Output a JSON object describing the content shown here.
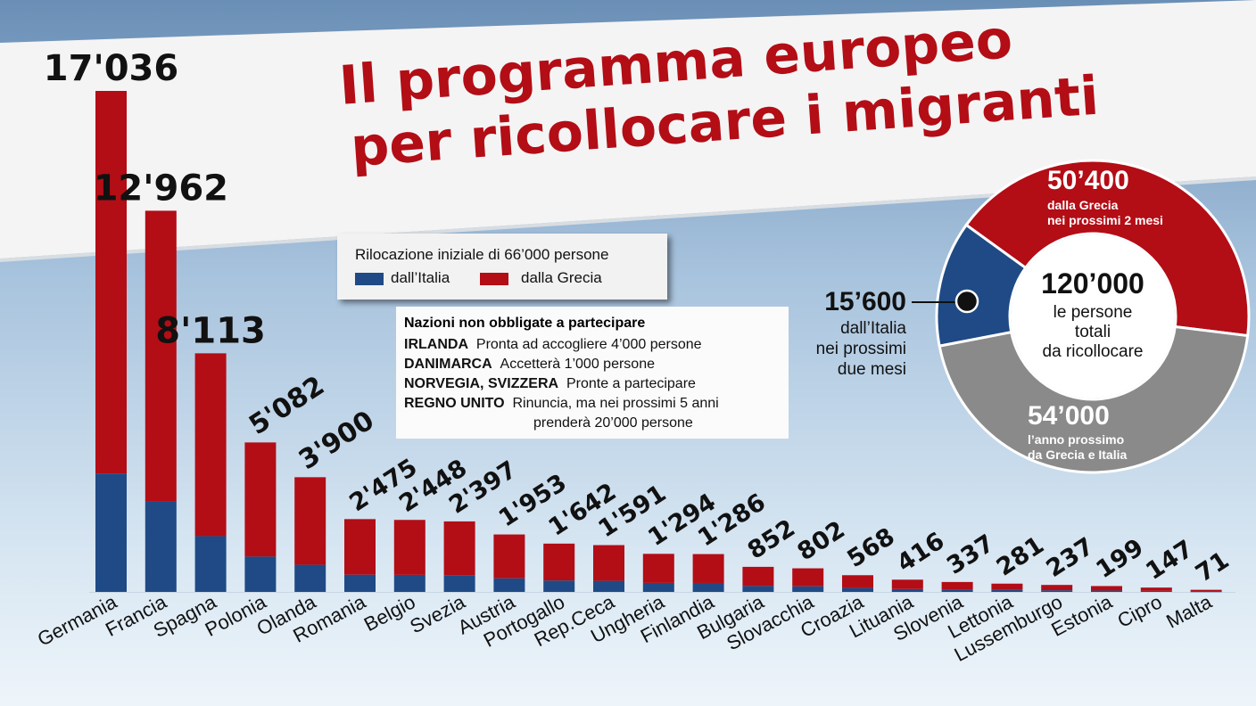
{
  "title": {
    "line1": "Il programma europeo",
    "line2": "per ricollocare i migranti"
  },
  "legend": {
    "title": "Rilocazione iniziale di 66’000 persone",
    "italy": "dall’Italia",
    "greece": "dalla Grecia"
  },
  "colors": {
    "italy": "#1f4a85",
    "greece": "#b30d16",
    "donut_gray": "#8a8a8a",
    "title": "#b30d16"
  },
  "info": {
    "heading": "Nazioni non obbligate a partecipare",
    "rows": [
      {
        "country": "IRLANDA",
        "text": "Pronta ad accogliere 4’000 persone"
      },
      {
        "country": "DANIMARCA",
        "text": "Accetterà 1’000 persone"
      },
      {
        "country": "NORVEGIA, SVIZZERA",
        "text": "Pronte a partecipare"
      },
      {
        "country": "REGNO UNITO",
        "text": "Rinuncia, ma nei prossimi 5 anni"
      }
    ],
    "extra": "prenderà 20’000 persone"
  },
  "chart_data": {
    "type": "bar",
    "stacked": true,
    "categories": [
      "Germania",
      "Francia",
      "Spagna",
      "Polonia",
      "Olanda",
      "Romania",
      "Belgio",
      "Svezia",
      "Austria",
      "Portogallo",
      "Rep.Ceca",
      "Ungheria",
      "Finlandia",
      "Bulgaria",
      "Slovacchia",
      "Croazia",
      "Lituania",
      "Slovenia",
      "Lettonia",
      "Lussemburgo",
      "Estonia",
      "Cipro",
      "Malta"
    ],
    "totals": [
      17036,
      12962,
      8113,
      5082,
      3900,
      2475,
      2448,
      2397,
      1953,
      1642,
      1591,
      1294,
      1286,
      852,
      802,
      568,
      416,
      337,
      281,
      237,
      199,
      147,
      71
    ],
    "total_labels": [
      "17'036",
      "12'962",
      "8'113",
      "5'082",
      "3'900",
      "2'475",
      "2'448",
      "2'397",
      "1'953",
      "1'642",
      "1'591",
      "1'294",
      "1'286",
      "852",
      "802",
      "568",
      "416",
      "337",
      "281",
      "237",
      "199",
      "147",
      "71"
    ],
    "series": [
      {
        "name": "dall’Italia",
        "values": [
          4027,
          3064,
          1896,
          1201,
          922,
          585,
          579,
          567,
          462,
          388,
          376,
          306,
          304,
          201,
          190,
          134,
          98,
          80,
          66,
          56,
          47,
          35,
          17
        ]
      },
      {
        "name": "dalla Grecia",
        "values": [
          13009,
          9898,
          6217,
          3881,
          2978,
          1890,
          1869,
          1830,
          1491,
          1254,
          1215,
          988,
          982,
          651,
          612,
          434,
          318,
          257,
          215,
          181,
          152,
          112,
          54
        ]
      }
    ]
  },
  "donut": {
    "center_value": "120’000",
    "center_text": [
      "le persone",
      "totali",
      "da ricollocare"
    ],
    "segments": [
      {
        "value": 50400,
        "label_value": "50’400",
        "label_text": [
          "dalla Grecia",
          "nei prossimi 2 mesi"
        ]
      },
      {
        "value": 54000,
        "label_value": "54’000",
        "label_text": [
          "l’anno prossimo",
          "da Grecia e Italia"
        ]
      },
      {
        "value": 15600,
        "label_value": "15’600",
        "label_text": [
          "dall’Italia",
          "nei prossimi",
          "due mesi"
        ]
      }
    ]
  }
}
